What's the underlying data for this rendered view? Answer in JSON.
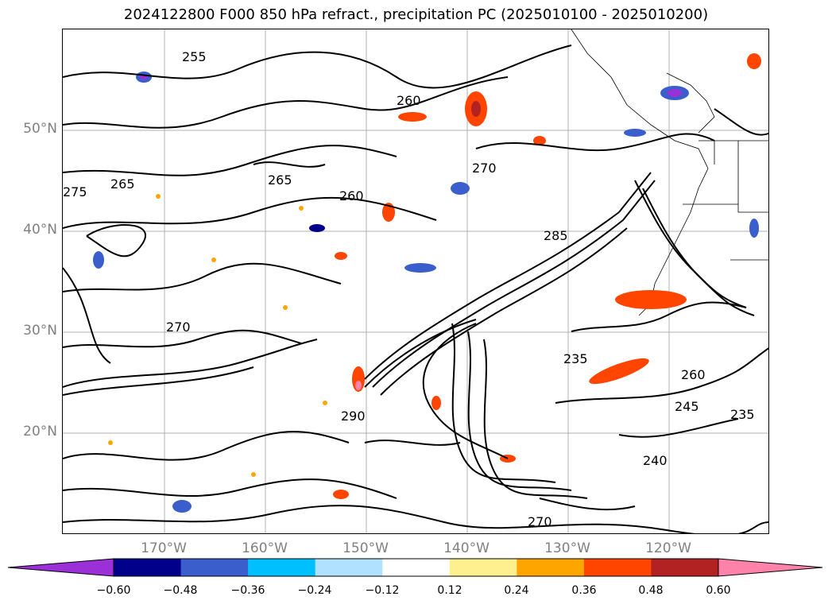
{
  "title": "2024122800 F000 850 hPa refract., precipitation PC (2025010100 - 2025010200)",
  "map": {
    "lat_labels": [
      "50°N",
      "40°N",
      "30°N",
      "20°N"
    ],
    "lon_labels": [
      "170°W",
      "160°W",
      "150°W",
      "140°W",
      "130°W",
      "120°W"
    ],
    "contour_labels": [
      "255",
      "260",
      "265",
      "270",
      "275",
      "260",
      "265",
      "270",
      "235",
      "260",
      "245",
      "240",
      "235",
      "270",
      "285",
      "290"
    ]
  },
  "colorbar": {
    "colors": [
      "#9b30d9",
      "#00008b",
      "#3a5fcd",
      "#00bfff",
      "#b0e2ff",
      "#ffffff",
      "#fff08f",
      "#ffa500",
      "#ff4500",
      "#b22222",
      "#ff82ab"
    ],
    "ticks": [
      "−0.60",
      "−0.48",
      "−0.36",
      "−0.24",
      "−0.12",
      "0.12",
      "0.24",
      "0.36",
      "0.48",
      "0.60"
    ]
  }
}
